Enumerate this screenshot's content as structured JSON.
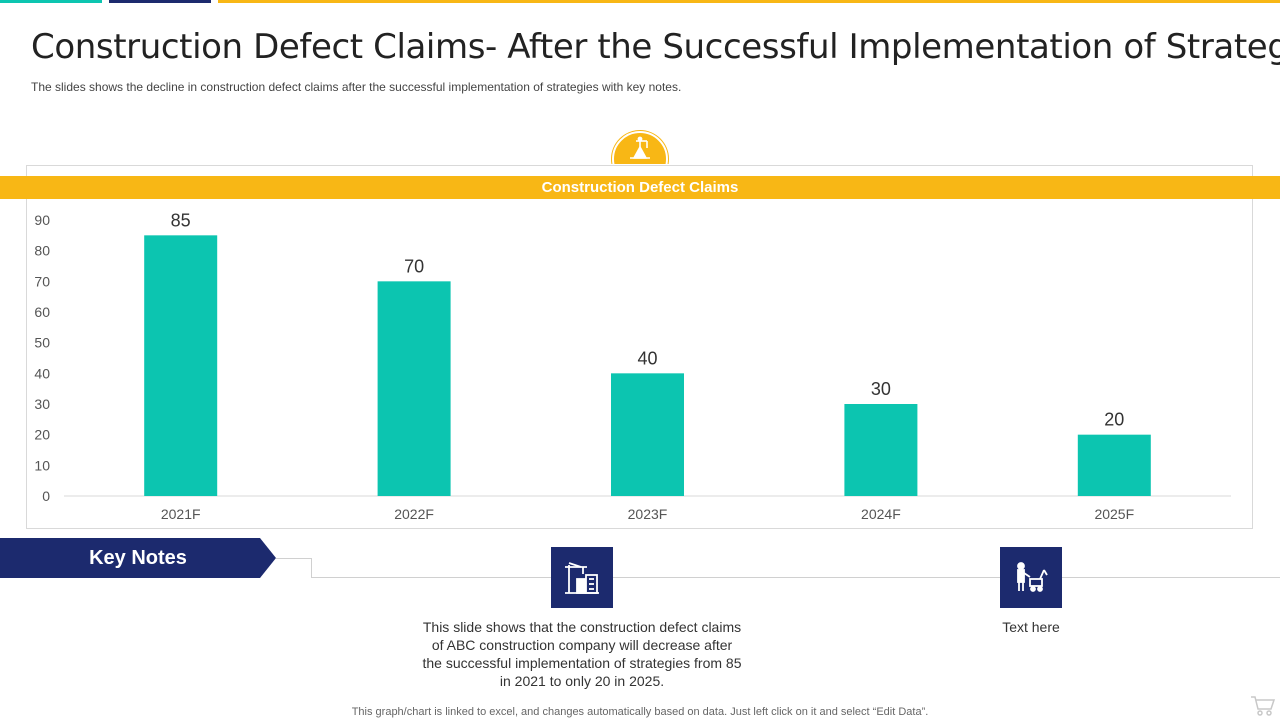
{
  "title": "Construction Defect Claims- After the Successful Implementation of Strategies",
  "subtitle": "The slides shows the decline in construction defect claims after the successful implementation  of strategies with key notes.",
  "chart_data": {
    "type": "bar",
    "title": "Construction Defect Claims",
    "categories": [
      "2021F",
      "2022F",
      "2023F",
      "2024F",
      "2025F"
    ],
    "values": [
      85,
      70,
      40,
      30,
      20
    ],
    "yticks": [
      0,
      10,
      20,
      30,
      40,
      50,
      60,
      70,
      80,
      90
    ],
    "ylim": [
      0,
      90
    ],
    "xlabel": "",
    "ylabel": "",
    "grid": false,
    "bar_color": "#0cc5b0"
  },
  "key_notes": {
    "label": "Key Notes",
    "notes": [
      {
        "icon": "crane-building-icon",
        "text": "This slide shows that the construction defect claims of ABC construction company will decrease after the successful implementation of strategies from 85 in 2021 to only 20 in 2025."
      },
      {
        "icon": "worker-excavator-icon",
        "text": "Text here"
      }
    ]
  },
  "footer": "This graph/chart is linked to excel,  and changes automatically based on data. Just left click on it and select “Edit Data”.",
  "colors": {
    "gold": "#f8b715",
    "teal": "#0cc5b0",
    "navy": "#1c2a6e"
  }
}
